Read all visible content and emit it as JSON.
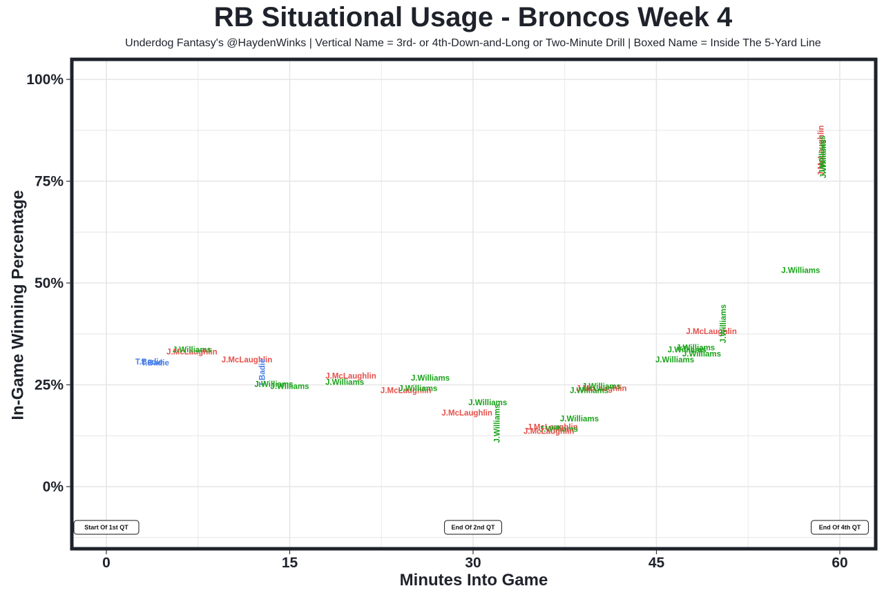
{
  "title": "RB Situational Usage - Broncos Week 4",
  "subtitle": "Underdog Fantasy's @HaydenWinks | Vertical Name = 3rd- or 4th-Down-and-Long or Two-Minute Drill | Boxed Name = Inside The 5-Yard Line",
  "colors": {
    "J.Williams": "#1aa31a",
    "J.McLaughlin": "#e5504b",
    "T.Badie": "#4a7fe8",
    "frame": "#1e222b",
    "grid": "#e6e6e6"
  },
  "chart_data": {
    "type": "scatter",
    "title": "RB Situational Usage - Broncos Week 4",
    "xlabel": "Minutes Into Game",
    "ylabel": "In-Game Winning Percentage",
    "xlim": [
      -3,
      63
    ],
    "ylim": [
      -15,
      105
    ],
    "x_ticks": [
      0,
      15,
      30,
      45,
      60
    ],
    "x_tick_labels": [
      "0",
      "15",
      "30",
      "45",
      "60"
    ],
    "y_ticks": [
      0,
      25,
      50,
      75,
      100
    ],
    "y_tick_labels": [
      "0%",
      "25%",
      "50%",
      "75%",
      "100%"
    ],
    "grid": true,
    "quarter_markers": [
      {
        "x": 0,
        "y": -10,
        "label": "Start Of 1st QT"
      },
      {
        "x": 30,
        "y": -10,
        "label": "End Of 2nd QT"
      },
      {
        "x": 60,
        "y": -10,
        "label": "End Of 4th QT"
      }
    ],
    "points": [
      {
        "x": 3.5,
        "y": 30.5,
        "player": "T.Badie",
        "vertical": false
      },
      {
        "x": 4.0,
        "y": 30.3,
        "player": "T.Badie",
        "vertical": false
      },
      {
        "x": 7.0,
        "y": 33.0,
        "player": "J.McLaughlin",
        "vertical": false
      },
      {
        "x": 7.0,
        "y": 33.5,
        "player": "J.Williams",
        "vertical": false
      },
      {
        "x": 11.5,
        "y": 31.0,
        "player": "J.McLaughlin",
        "vertical": false
      },
      {
        "x": 12.8,
        "y": 28.0,
        "player": "T.Badie",
        "vertical": true
      },
      {
        "x": 13.7,
        "y": 25.0,
        "player": "J.Williams",
        "vertical": false
      },
      {
        "x": 15.0,
        "y": 24.5,
        "player": "J.Williams",
        "vertical": false
      },
      {
        "x": 20.0,
        "y": 27.0,
        "player": "J.McLaughlin",
        "vertical": false
      },
      {
        "x": 19.5,
        "y": 25.5,
        "player": "J.Williams",
        "vertical": false
      },
      {
        "x": 24.5,
        "y": 23.5,
        "player": "J.McLaughlin",
        "vertical": false
      },
      {
        "x": 25.5,
        "y": 24.0,
        "player": "J.Williams",
        "vertical": false
      },
      {
        "x": 26.5,
        "y": 26.5,
        "player": "J.Williams",
        "vertical": false
      },
      {
        "x": 29.5,
        "y": 18.0,
        "player": "J.McLaughlin",
        "vertical": false
      },
      {
        "x": 31.2,
        "y": 20.5,
        "player": "J.Williams",
        "vertical": false
      },
      {
        "x": 32.0,
        "y": 15.5,
        "player": "J.Williams",
        "vertical": true
      },
      {
        "x": 36.5,
        "y": 14.5,
        "player": "J.McLaughlin",
        "vertical": false
      },
      {
        "x": 37.0,
        "y": 14.0,
        "player": "J.Williams",
        "vertical": false
      },
      {
        "x": 36.2,
        "y": 13.5,
        "player": "J.McLaughlin",
        "vertical": false
      },
      {
        "x": 38.7,
        "y": 16.5,
        "player": "J.Williams",
        "vertical": false
      },
      {
        "x": 40.5,
        "y": 24.0,
        "player": "J.McLaughlin",
        "vertical": false
      },
      {
        "x": 40.5,
        "y": 24.5,
        "player": "J.Williams",
        "vertical": false
      },
      {
        "x": 39.5,
        "y": 23.5,
        "player": "J.Williams",
        "vertical": false
      },
      {
        "x": 46.5,
        "y": 31.0,
        "player": "J.Williams",
        "vertical": false
      },
      {
        "x": 47.5,
        "y": 33.5,
        "player": "J.Williams",
        "vertical": false
      },
      {
        "x": 48.2,
        "y": 34.0,
        "player": "J.Williams",
        "vertical": false
      },
      {
        "x": 48.7,
        "y": 32.5,
        "player": "J.Williams",
        "vertical": false
      },
      {
        "x": 49.5,
        "y": 38.0,
        "player": "J.McLaughlin",
        "vertical": false
      },
      {
        "x": 50.5,
        "y": 40.0,
        "player": "J.Williams",
        "vertical": true
      },
      {
        "x": 56.8,
        "y": 53.0,
        "player": "J.Williams",
        "vertical": false
      },
      {
        "x": 58.5,
        "y": 82.5,
        "player": "J.McLaughlin",
        "vertical": true
      },
      {
        "x": 58.6,
        "y": 81.5,
        "player": "J.Williams",
        "vertical": true
      },
      {
        "x": 58.7,
        "y": 80.5,
        "player": "J.Williams",
        "vertical": true
      }
    ]
  }
}
